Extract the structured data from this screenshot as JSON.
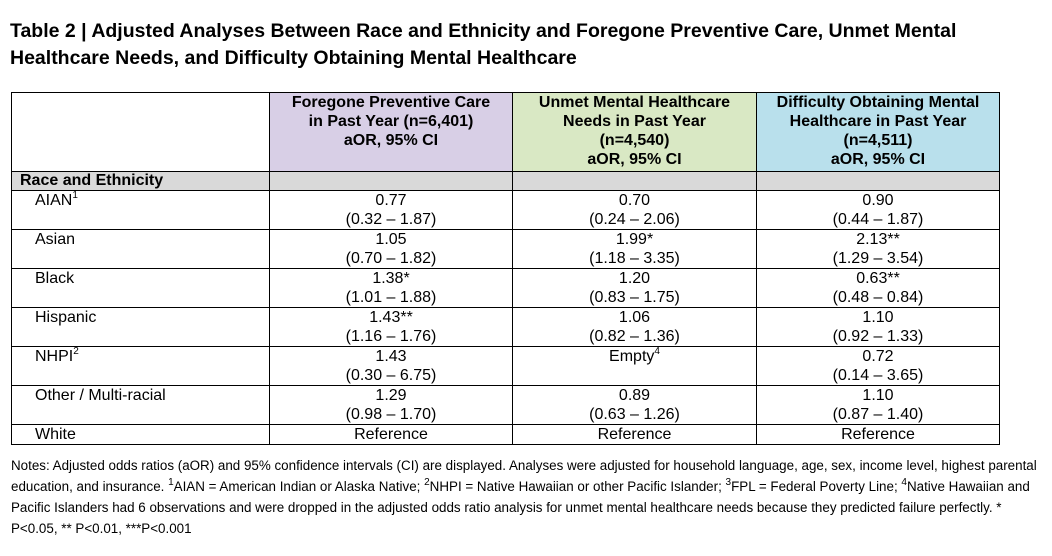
{
  "title": "Table 2 | Adjusted Analyses Between Race and Ethnicity and Foregone Preventive Care, Unmet Mental Healthcare Needs, and Difficulty Obtaining Mental Healthcare",
  "colors": {
    "col1_header_bg": "#d8cfe6",
    "col2_header_bg": "#d9e8c4",
    "col3_header_bg": "#b9e0ec",
    "section_bg": "#d9d9d9"
  },
  "columns": [
    {
      "line1": "Foregone Preventive Care",
      "line2": "in Past Year (n=6,401)",
      "line3": "aOR, 95% CI",
      "line4": ""
    },
    {
      "line1": "Unmet Mental Healthcare",
      "line2": "Needs in Past Year",
      "line3": "(n=4,540)",
      "line4": "aOR, 95% CI"
    },
    {
      "line1": "Difficulty Obtaining Mental",
      "line2": "Healthcare in Past Year",
      "line3": "(n=4,511)",
      "line4": "aOR, 95% CI"
    }
  ],
  "section_label": "Race and Ethnicity",
  "rows": [
    {
      "label": "AIAN",
      "sup": "1",
      "cells": [
        {
          "v": "0.77",
          "ci": "(0.32 – 1.87)"
        },
        {
          "v": "0.70",
          "ci": "(0.24 – 2.06)"
        },
        {
          "v": "0.90",
          "ci": "(0.44 – 1.87)"
        }
      ]
    },
    {
      "label": "Asian",
      "sup": "",
      "cells": [
        {
          "v": "1.05",
          "ci": "(0.70 – 1.82)"
        },
        {
          "v": "1.99*",
          "ci": "(1.18 – 3.35)"
        },
        {
          "v": "2.13**",
          "ci": "(1.29 – 3.54)"
        }
      ]
    },
    {
      "label": "Black",
      "sup": "",
      "cells": [
        {
          "v": "1.38*",
          "ci": "(1.01 – 1.88)"
        },
        {
          "v": "1.20",
          "ci": "(0.83 – 1.75)"
        },
        {
          "v": "0.63**",
          "ci": "(0.48 – 0.84)"
        }
      ]
    },
    {
      "label": "Hispanic",
      "sup": "",
      "cells": [
        {
          "v": "1.43**",
          "ci": "(1.16 – 1.76)"
        },
        {
          "v": "1.06",
          "ci": "(0.82 – 1.36)"
        },
        {
          "v": "1.10",
          "ci": "(0.92 – 1.33)"
        }
      ]
    },
    {
      "label": "NHPI",
      "sup": "2",
      "cells": [
        {
          "v": "1.43",
          "ci": "(0.30 – 6.75)"
        },
        {
          "v": "Empty",
          "vsup": "4",
          "ci": ""
        },
        {
          "v": "0.72",
          "ci": "(0.14 – 3.65)"
        }
      ]
    },
    {
      "label": "Other / Multi-racial",
      "sup": "",
      "cells": [
        {
          "v": "1.29",
          "ci": "(0.98 – 1.70)"
        },
        {
          "v": "0.89",
          "ci": "(0.63 – 1.26)"
        },
        {
          "v": "1.10",
          "ci": "(0.87 – 1.40)"
        }
      ]
    }
  ],
  "last_row": {
    "label": "White",
    "cells": [
      "Reference",
      "Reference",
      "Reference"
    ]
  },
  "notes": {
    "part1": "Notes: Adjusted odds ratios (aOR) and 95% confidence intervals (CI) are displayed. Analyses were adjusted for household language, age, sex, income level, highest parental education, and insurance. ",
    "sup1": "1",
    "part2": "AIAN = American Indian or Alaska Native; ",
    "sup2": "2",
    "part3": "NHPI = Native Hawaiian or other Pacific Islander; ",
    "sup3": "3",
    "part4": "FPL = Federal Poverty Line; ",
    "sup4": "4",
    "part5": "Native Hawaiian and Pacific Islanders had 6 observations and were dropped in the adjusted odds ratio analysis for unmet mental healthcare needs because they predicted failure perfectly.  * P<0.05, ** P<0.01, ***P<0.001"
  }
}
